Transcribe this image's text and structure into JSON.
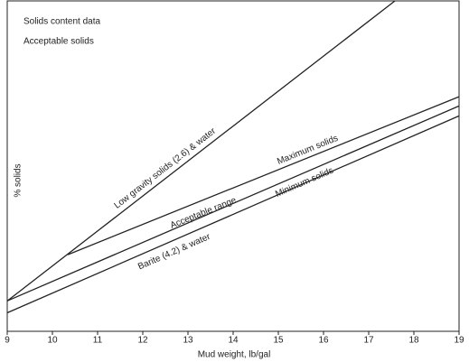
{
  "chart_data": {
    "type": "line",
    "annotations": [
      "Solids content data",
      "Acceptable solids",
      "Acceptable range"
    ],
    "xlabel": "Mud weight, lb/gal",
    "ylabel": "% solids",
    "xlim": [
      9,
      19
    ],
    "xticks": [
      9,
      10,
      11,
      12,
      13,
      14,
      15,
      16,
      17,
      18,
      19
    ],
    "ylim": [
      0,
      50
    ],
    "series": [
      {
        "name": "Low gravity solids (2.6) & water",
        "color": "#222222",
        "x": [
          9,
          17.58
        ],
        "values": [
          4.6,
          50
        ]
      },
      {
        "name": "Maximum solids",
        "color": "#222222",
        "x": [
          10.34,
          19
        ],
        "values": [
          11.6,
          35.5
        ]
      },
      {
        "name": "Minimum solids",
        "color": "#222222",
        "x": [
          9,
          19
        ],
        "values": [
          4.6,
          34.1
        ]
      },
      {
        "name": "Barite (4.2) & water",
        "color": "#222222",
        "x": [
          9,
          19
        ],
        "values": [
          2.8,
          32.6
        ]
      }
    ]
  }
}
